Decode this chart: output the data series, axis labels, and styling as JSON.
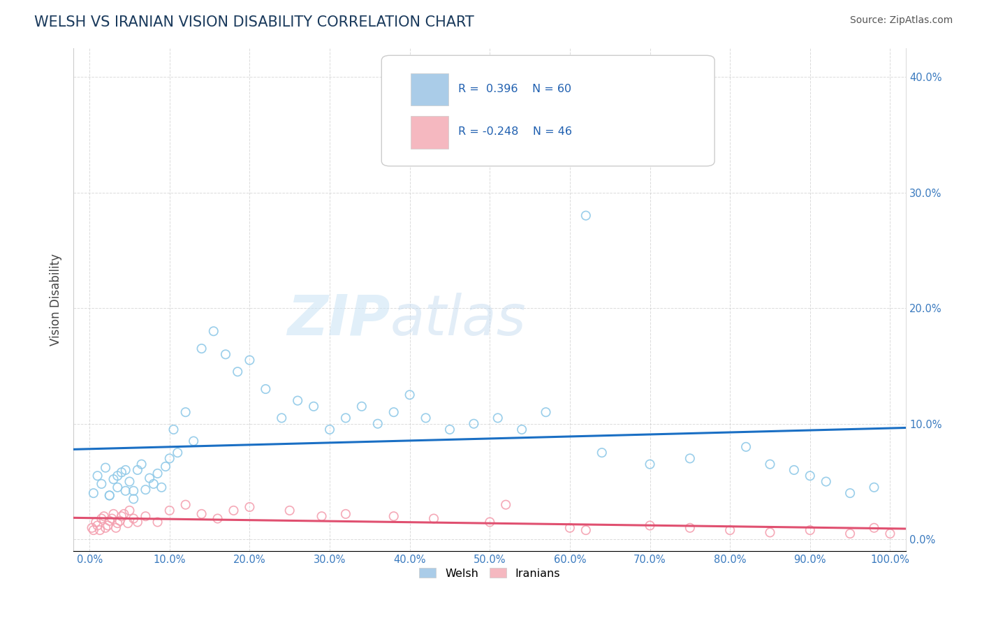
{
  "title": "WELSH VS IRANIAN VISION DISABILITY CORRELATION CHART",
  "source": "Source: ZipAtlas.com",
  "ylabel": "Vision Disability",
  "xlim": [
    -0.02,
    1.02
  ],
  "ylim": [
    -0.01,
    0.425
  ],
  "xticks": [
    0.0,
    0.1,
    0.2,
    0.3,
    0.4,
    0.5,
    0.6,
    0.7,
    0.8,
    0.9,
    1.0
  ],
  "xtick_labels": [
    "0.0%",
    "10.0%",
    "20.0%",
    "30.0%",
    "40.0%",
    "50.0%",
    "60.0%",
    "70.0%",
    "80.0%",
    "90.0%",
    "100.0%"
  ],
  "yticks": [
    0.0,
    0.1,
    0.2,
    0.3,
    0.4
  ],
  "ytick_labels": [
    "0.0%",
    "10.0%",
    "20.0%",
    "30.0%",
    "40.0%"
  ],
  "welsh_color": "#8fc9e8",
  "iranian_color": "#f4a0b0",
  "welsh_line_color": "#1a6fc4",
  "iranian_line_color": "#e05070",
  "welsh_R": 0.396,
  "welsh_N": 60,
  "iranian_R": -0.248,
  "iranian_N": 46,
  "legend_welsh": "Welsh",
  "legend_iranian": "Iranians",
  "background_color": "#ffffff",
  "grid_color": "#cccccc",
  "title_color": "#1a3a5c",
  "tick_color": "#3a7abf",
  "source_color": "#555555"
}
